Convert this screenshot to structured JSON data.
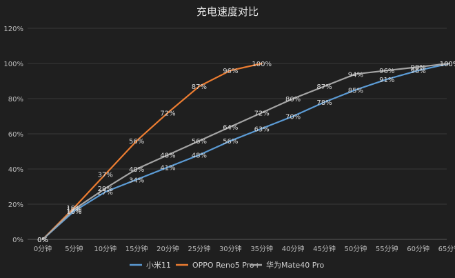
{
  "chart_data": {
    "type": "line",
    "title": "充电速度对比",
    "xlabel": "",
    "ylabel": "",
    "categories": [
      "0分钟",
      "5分钟",
      "10分钟",
      "15分钟",
      "20分钟",
      "25分钟",
      "30分钟",
      "35分钟",
      "40分钟",
      "45分钟",
      "50分钟",
      "55分钟",
      "60分钟",
      "65分钟"
    ],
    "ylim": [
      0,
      120
    ],
    "yticks": [
      "0%",
      "20%",
      "40%",
      "60%",
      "80%",
      "100%",
      "120%"
    ],
    "grid": true,
    "legend_position": "bottom",
    "series": [
      {
        "name": "小米11",
        "color": "#5b9bd5",
        "values": [
          0,
          16,
          27,
          34,
          41,
          48,
          56,
          63,
          70,
          78,
          85,
          91,
          96,
          100
        ],
        "labels": [
          "0%",
          "16%",
          "27%",
          "34%",
          "41%",
          "48%",
          "56%",
          "63%",
          "70%",
          "78%",
          "85%",
          "91%",
          "96%",
          "100%"
        ]
      },
      {
        "name": "OPPO Reno5 Pro+",
        "color": "#ed7d31",
        "values": [
          0,
          18,
          37,
          56,
          72,
          87,
          96,
          100,
          null,
          null,
          null,
          null,
          null,
          null
        ],
        "labels": [
          "0%",
          "18%",
          "37%",
          "56%",
          "72%",
          "87%",
          "96%",
          "100%",
          "",
          "",
          "",
          "",
          "",
          ""
        ]
      },
      {
        "name": "华为Mate40 Pro",
        "color": "#a5a5a5",
        "values": [
          0,
          17,
          29,
          40,
          48,
          56,
          64,
          72,
          80,
          87,
          94,
          96,
          98,
          100
        ],
        "labels": [
          "0%",
          "17%",
          "29%",
          "40%",
          "48%",
          "56%",
          "64%",
          "72%",
          "80%",
          "87%",
          "94%",
          "96%",
          "98%",
          "100%"
        ]
      }
    ]
  }
}
